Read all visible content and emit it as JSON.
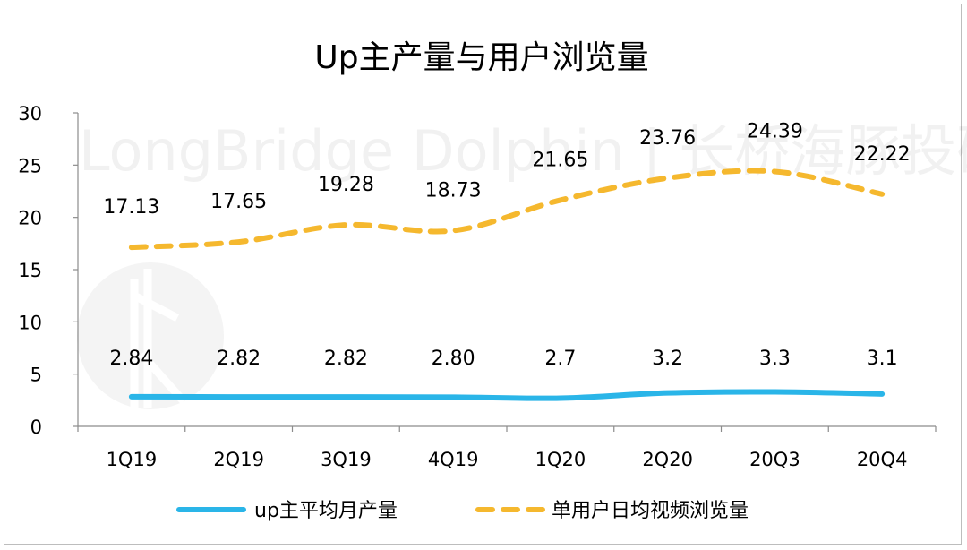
{
  "chart_data": {
    "type": "line",
    "title": "Up主产量与用户浏览量",
    "categories": [
      "1Q19",
      "2Q19",
      "3Q19",
      "4Q19",
      "1Q20",
      "2Q20",
      "20Q3",
      "20Q4"
    ],
    "series": [
      {
        "name": "up主平均月产量",
        "values": [
          2.84,
          2.82,
          2.82,
          2.8,
          2.7,
          3.2,
          3.3,
          3.1
        ],
        "labels": [
          "2.84",
          "2.82",
          "2.82",
          "2.80",
          "2.7",
          "3.2",
          "3.3",
          "3.1"
        ],
        "color": "#2ab5e8",
        "style": "solid"
      },
      {
        "name": "单用户日均视频浏览量",
        "values": [
          17.13,
          17.65,
          19.28,
          18.73,
          21.65,
          23.76,
          24.39,
          22.22
        ],
        "labels": [
          "17.13",
          "17.65",
          "19.28",
          "18.73",
          "21.65",
          "23.76",
          "24.39",
          "22.22"
        ],
        "color": "#f5b82e",
        "style": "dashed"
      }
    ],
    "yticks": [
      "0",
      "5",
      "10",
      "15",
      "20",
      "25",
      "30"
    ],
    "ylim": [
      0,
      30
    ],
    "grid": false,
    "legend_position": "bottom",
    "watermark": "LongBridge Dolphin | 长桥海豚投研"
  }
}
